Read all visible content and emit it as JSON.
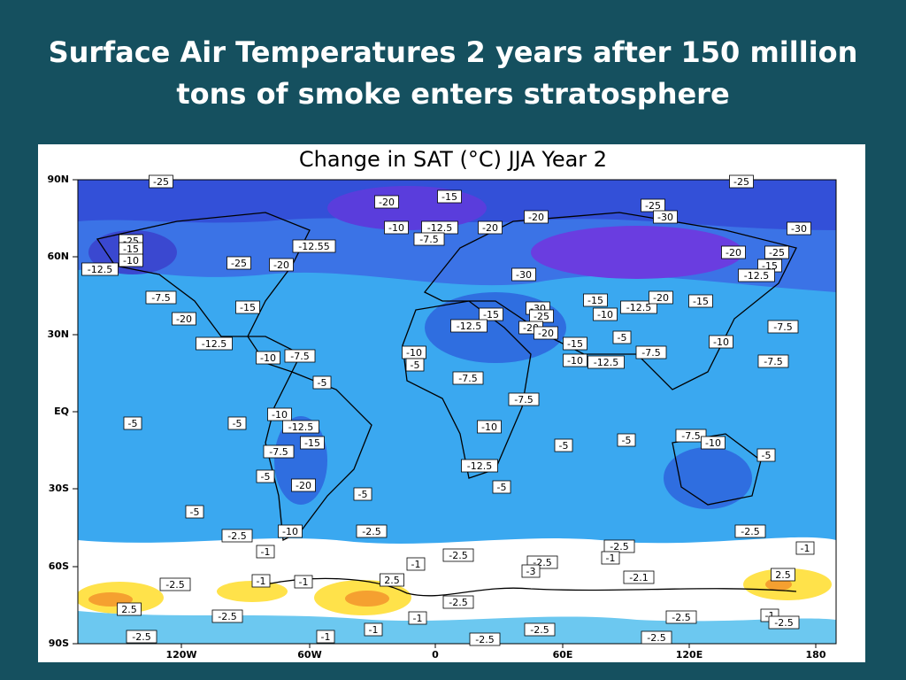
{
  "slide": {
    "title_lines": [
      "Surface Air Temperatures 2 years after 150 million",
      "tons of smoke enters stratosphere"
    ]
  },
  "map": {
    "title": "Change in SAT (°C) JJA Year 2",
    "lat_labels": [
      "90N",
      "60N",
      "30N",
      "EQ",
      "30S",
      "60S",
      "90S"
    ],
    "lon_labels": [
      "120W",
      "60W",
      "0",
      "60E",
      "120E",
      "180"
    ],
    "contour_labels": [
      "-20",
      "-15",
      "-10",
      "-12.5",
      "-20",
      "-7.5",
      "-20",
      "-25",
      "-30",
      "-30",
      "-25",
      "-25",
      "-12.55",
      "-25",
      "-15",
      "-10",
      "-12.5",
      "-25",
      "-20",
      "-20",
      "-25",
      "-15",
      "-12.5",
      "-30",
      "-7.5",
      "-15",
      "-20",
      "-15",
      "-12.5",
      "-30",
      "-25",
      "-15",
      "-10",
      "-12.5",
      "-20",
      "-15",
      "-7.5",
      "-20",
      "-20",
      "-5",
      "-10",
      "-12.5",
      "-10",
      "-7.5",
      "-15",
      "-10",
      "-12.5",
      "-7.5",
      "-7.5",
      "-10",
      "-5",
      "-7.5",
      "-5",
      "-7.5",
      "-5",
      "-5",
      "-10",
      "-12.5",
      "-7.5",
      "-15",
      "-10",
      "-5",
      "-5",
      "-7.5",
      "-10",
      "-5",
      "-12.5",
      "-5",
      "-20",
      "-5",
      "-5",
      "-5",
      "-2.5",
      "-10",
      "-2.5",
      "-2.5",
      "-2.5",
      "-1",
      "-2.5",
      "-1",
      "-1",
      "-2.5",
      "-3",
      "-1",
      "-2.1",
      "-2.5",
      "2.5",
      "-1",
      "-1",
      "2.5",
      "-2.5",
      "2.5",
      "-2.5",
      "-1",
      "-1",
      "-2.5",
      "-1",
      "-2.5",
      "-2.5",
      "-2.5",
      "-1",
      "-2.5",
      "-2.5"
    ]
  }
}
